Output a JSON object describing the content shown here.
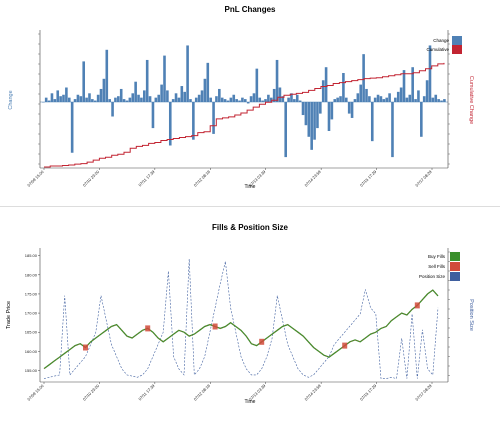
{
  "chart_data": [
    {
      "type": "bar",
      "title": "PnL Changes",
      "xlabel": "Time",
      "ylabel_left": "Change",
      "ylabel_right": "Cumulative Change",
      "x_ticks": [
        "07/09 15:00",
        "07/10 23:00",
        "07/11 17:39",
        "07/12 08:19",
        "07/13 03:39",
        "07/14 23:59",
        "07/15 17:29",
        "07/17 08:29"
      ],
      "grid": false,
      "legend_position": "top-right",
      "colors": {
        "change": "#4f81b5",
        "cumulative": "#c22432"
      },
      "series": [
        {
          "name": "Change",
          "kind": "bar",
          "values": [
            0,
            0.3,
            0.1,
            0.6,
            0.2,
            0.8,
            0.4,
            0.5,
            1.0,
            0.3,
            -3.5,
            0.2,
            0.5,
            0.4,
            2.8,
            0.3,
            0.6,
            0.2,
            0.1,
            0.5,
            0.9,
            1.6,
            3.6,
            0.2,
            -1.0,
            0.3,
            0.4,
            0.9,
            0.2,
            0.1,
            0.3,
            0.6,
            1.4,
            0.5,
            0.3,
            0.8,
            2.9,
            0.4,
            -1.8,
            0.3,
            0.5,
            1.2,
            3.2,
            0.8,
            -3.0,
            0.2,
            0.6,
            0.3,
            1.1,
            0.7,
            3.9,
            0.2,
            -2.6,
            0.3,
            0.5,
            0.8,
            1.6,
            2.7,
            0.3,
            -2.2,
            0.4,
            0.9,
            0.3,
            0.2,
            0.1,
            0.3,
            0.5,
            0.2,
            0.1,
            0.3,
            0.2,
            -0.1,
            0.4,
            0.6,
            2.3,
            0.3,
            0.1,
            0.2,
            0.5,
            0.3,
            0.9,
            2.9,
            1.0,
            0.4,
            -3.8,
            0.3,
            0.6,
            0.2,
            0.5,
            0.1,
            -0.9,
            -1.6,
            -2.4,
            -3.3,
            -2.6,
            -1.8,
            -0.8,
            1.5,
            2.4,
            -2.0,
            -1.2,
            0.2,
            0.3,
            0.4,
            2.0,
            0.3,
            -0.8,
            -1.1,
            0.2,
            0.6,
            1.2,
            3.3,
            0.9,
            0.4,
            -2.7,
            0.3,
            0.5,
            0.4,
            0.2,
            0.3,
            0.6,
            -3.8,
            0.3,
            0.7,
            1.0,
            2.2,
            0.3,
            0.5,
            2.4,
            0.2,
            0.8,
            -2.4,
            0.4,
            1.5,
            3.9,
            0.3,
            0.5,
            0.2,
            0.1,
            0.2
          ]
        },
        {
          "name": "Cumulative",
          "kind": "line",
          "axis": "right",
          "values": [
            0,
            0.1,
            0.1,
            0.15,
            0.2,
            0.3,
            0.35,
            0.5,
            0.7,
            0.9,
            1.0,
            1.2,
            1.3,
            1.5,
            1.9,
            2.1,
            2.2,
            2.4,
            2.5,
            2.7,
            2.8,
            2.9,
            3.0,
            3.1,
            3.2,
            3.5,
            3.6,
            4.2,
            4.9,
            5.0,
            5.1,
            5.3,
            5.5,
            5.8,
            6.1,
            6.4,
            6.6,
            6.8,
            7.1,
            7.3,
            7.4,
            7.5,
            7.6,
            7.8,
            8.0,
            8.2,
            8.3,
            8.5,
            8.6,
            8.7,
            8.8,
            8.9,
            9.0,
            9.05,
            9.1,
            9.2,
            9.3,
            9.4,
            9.5,
            9.5,
            9.6,
            9.8,
            10.0,
            10.3,
            10.5,
            10.6
          ]
        }
      ]
    },
    {
      "type": "line",
      "title": "Fills & Position Size",
      "xlabel": "Time",
      "ylabel_left": "Trade Price",
      "ylabel_right": "Position Size",
      "x_ticks": [
        "07/09 15:00",
        "07/10 23:00",
        "07/11 17:39",
        "07/12 08:19",
        "07/13 03:39",
        "07/14 23:59",
        "07/15 17:29",
        "07/17 08:29"
      ],
      "y_ticks": [
        "155.00",
        "160.00",
        "165.00",
        "170.00",
        "175.00",
        "180.00",
        "185.00"
      ],
      "ylim": [
        152,
        187
      ],
      "grid": false,
      "legend_position": "top-right",
      "colors": {
        "buy": "#3a8f2b",
        "sell": "#d14a3b",
        "position": "#3f5f9f"
      },
      "series": [
        {
          "name": "Buy Fills",
          "kind": "price",
          "values": [
            155.5,
            156.5,
            157.5,
            158.5,
            159.5,
            160.5,
            161.5,
            162.0,
            161.0,
            162.5,
            163.5,
            164.5,
            165.5,
            166.5,
            167.0,
            165.5,
            164.0,
            163.5,
            164.5,
            165.5,
            166.0,
            165.0,
            163.5,
            162.5,
            163.5,
            164.5,
            165.5,
            165.0,
            164.0,
            164.5,
            165.5,
            166.5,
            167.0,
            166.5,
            166.0,
            166.5,
            167.5,
            166.5,
            165.5,
            164.0,
            162.0,
            161.5,
            162.5,
            163.5,
            164.5,
            165.5,
            166.5,
            167.0,
            166.0,
            165.0,
            164.0,
            162.5,
            161.0,
            160.0,
            159.0,
            158.5,
            159.5,
            160.5,
            161.5,
            162.5,
            163.0,
            162.5,
            163.5,
            164.5,
            165.0,
            166.0,
            166.5,
            168.0,
            169.0,
            170.0,
            169.5,
            171.0,
            172.0,
            173.5,
            175.0,
            176.0,
            174.5
          ]
        },
        {
          "name": "Position Size",
          "kind": "dashed",
          "axis": "right",
          "values": [
            0.02,
            0.03,
            0.04,
            0.05,
            0.7,
            0.05,
            0.1,
            0.15,
            0.2,
            0.3,
            0.4,
            0.7,
            0.5,
            0.3,
            0.2,
            0.1,
            0.05,
            0.04,
            0.03,
            0.05,
            0.1,
            0.2,
            0.3,
            0.4,
            0.9,
            0.2,
            0.1,
            0.05,
            1.0,
            0.05,
            0.1,
            0.2,
            0.4,
            0.6,
            0.8,
            0.98,
            0.6,
            0.4,
            0.2,
            0.1,
            0.05,
            0.05,
            0.1,
            0.2,
            0.35,
            0.7,
            0.5,
            0.3,
            0.2,
            0.1,
            0.05,
            0.03,
            0.05,
            0.1,
            0.15,
            0.2,
            0.3,
            0.35,
            0.4,
            0.45,
            0.5,
            0.55,
            0.75,
            0.6,
            0.55,
            0.02,
            0.02,
            0.03,
            0.02,
            0.35,
            0.02,
            0.55,
            0.02,
            0.42,
            0.1,
            0.05,
            0.6
          ]
        }
      ]
    }
  ]
}
